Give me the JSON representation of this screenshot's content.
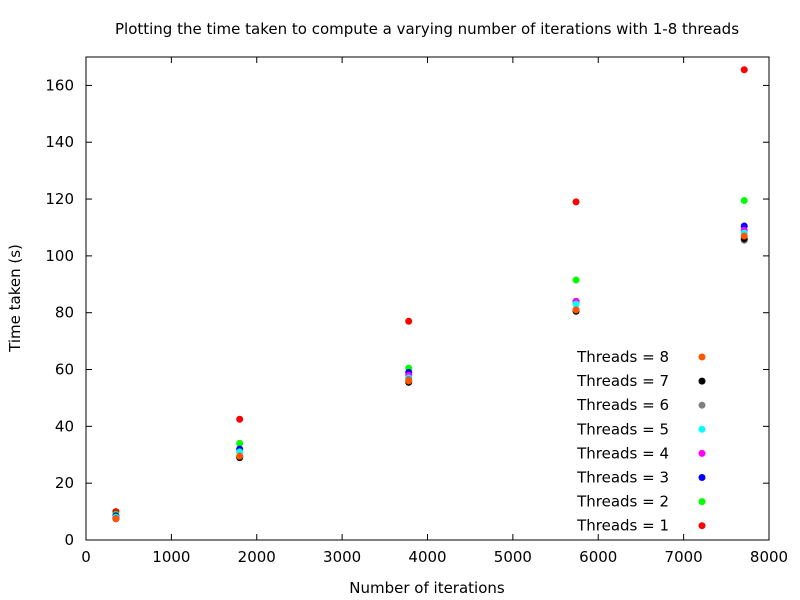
{
  "chart_data": {
    "type": "scatter",
    "title": "Plotting the time taken to compute a varying number of iterations with 1-8 threads",
    "xlabel": "Number of iterations",
    "ylabel": "Time taken (s)",
    "xlim": [
      0,
      8000
    ],
    "ylim": [
      0,
      170
    ],
    "xticks": [
      0,
      1000,
      2000,
      3000,
      4000,
      5000,
      6000,
      7000,
      8000
    ],
    "yticks": [
      0,
      20,
      40,
      60,
      80,
      100,
      120,
      140,
      160
    ],
    "grid": false,
    "legend_position": "bottom-right",
    "x": [
      350,
      1800,
      3780,
      5740,
      7710
    ],
    "series": [
      {
        "name": "Threads = 8",
        "color": "#ff5500",
        "values": [
          7.5,
          29.5,
          56,
          81,
          107
        ]
      },
      {
        "name": "Threads = 7",
        "color": "#000000",
        "values": [
          7.5,
          29,
          55.5,
          80.5,
          106
        ]
      },
      {
        "name": "Threads = 6",
        "color": "#808080",
        "values": [
          7.5,
          29.5,
          56.5,
          81,
          105.5
        ]
      },
      {
        "name": "Threads = 5",
        "color": "#00ffff",
        "values": [
          8,
          31,
          57,
          83,
          108
        ]
      },
      {
        "name": "Threads = 4",
        "color": "#ff00ff",
        "values": [
          8,
          31,
          58,
          84,
          109
        ]
      },
      {
        "name": "Threads = 3",
        "color": "#0000ff",
        "values": [
          8.5,
          32,
          59,
          84,
          110.5
        ]
      },
      {
        "name": "Threads = 2",
        "color": "#00ff00",
        "values": [
          9,
          34,
          60.5,
          91.5,
          119.5
        ]
      },
      {
        "name": "Threads = 1",
        "color": "#ff0000",
        "values": [
          10,
          42.5,
          77,
          119,
          165.5
        ]
      }
    ]
  }
}
